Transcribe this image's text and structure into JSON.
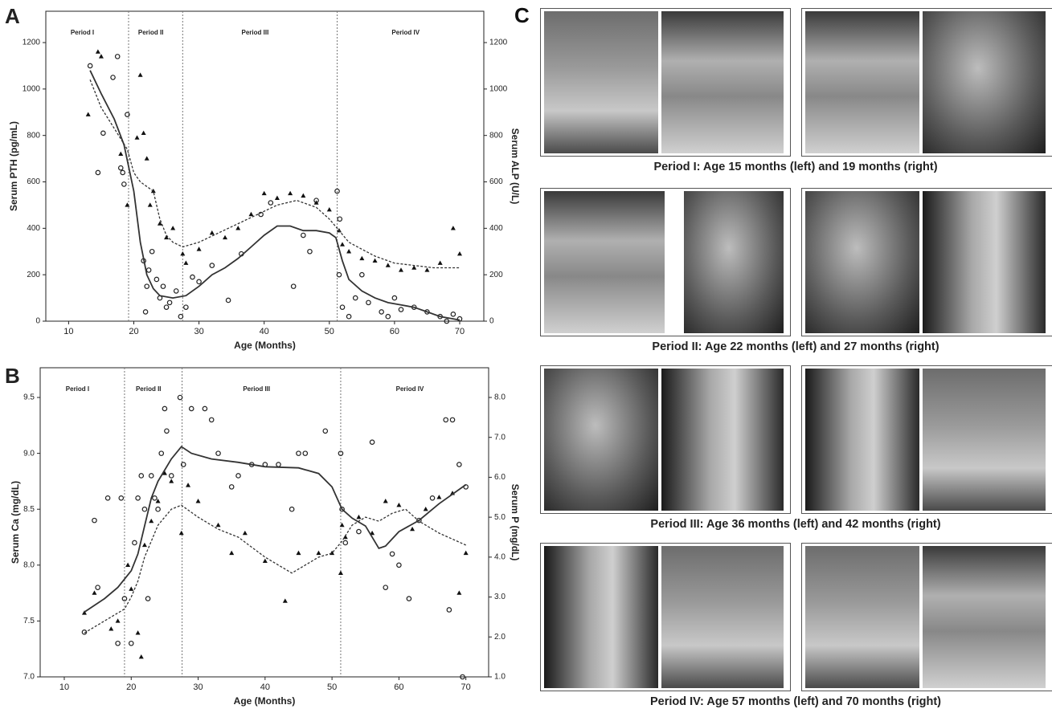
{
  "chart_data": [
    {
      "type": "scatter",
      "panel_label": "A",
      "x_label": "Age (Months)",
      "y_label": "Serum PTH (pg/mL)",
      "y2_label": "Serum ALP (U/L)",
      "annotations": [
        "Period I",
        "Period II",
        "Period III",
        "Period IV"
      ],
      "period_boundaries": [
        19.2,
        27.5,
        51.2
      ],
      "xlim": [
        6.5,
        73.7
      ],
      "xticks": [
        10,
        20,
        30,
        40,
        50,
        60,
        70
      ],
      "ylim": [
        0,
        1335
      ],
      "yticks": [
        0,
        200,
        400,
        600,
        800,
        1000,
        1200
      ],
      "y2lim": [
        0,
        1335
      ],
      "y2ticks": [
        0,
        200,
        400,
        600,
        800,
        1000,
        1200
      ],
      "series": [
        {
          "marker": "circle",
          "color": "#222222",
          "x": [
            13.3,
            14.5,
            15.3,
            16.8,
            17.5,
            18,
            18.3,
            18.5,
            19,
            21.5,
            21.8,
            22,
            22.3,
            22.8,
            23.5,
            24,
            24.5,
            25,
            25.5,
            26.5,
            27.2,
            28,
            29,
            30,
            32,
            34.5,
            36.5,
            39.5,
            41,
            44.5,
            46,
            47,
            48,
            51.2,
            51.5,
            51.6,
            52,
            53,
            54,
            55,
            56,
            58,
            59,
            60,
            61,
            63,
            65,
            67,
            68,
            69,
            70
          ],
          "values": [
            1100,
            640,
            810,
            1050,
            1140,
            660,
            640,
            590,
            890,
            260,
            40,
            150,
            220,
            300,
            180,
            100,
            150,
            60,
            80,
            130,
            20,
            60,
            190,
            170,
            240,
            90,
            290,
            460,
            510,
            150,
            370,
            300,
            520,
            560,
            200,
            440,
            60,
            20,
            100,
            200,
            80,
            40,
            20,
            100,
            50,
            60,
            40,
            20,
            0,
            30,
            10
          ]
        },
        {
          "marker": "triangle",
          "color": "#111111",
          "axis": "y2",
          "x": [
            13,
            14.5,
            15,
            18,
            19,
            20.5,
            21,
            21.5,
            22,
            22.5,
            23,
            24,
            25,
            26,
            27.5,
            28,
            30,
            32,
            34,
            36,
            38,
            40,
            42,
            44,
            46,
            48,
            50,
            51.5,
            52,
            53,
            55,
            57,
            59,
            61,
            63,
            65,
            67,
            69,
            70
          ],
          "values": [
            890,
            1160,
            1140,
            720,
            500,
            790,
            1060,
            810,
            700,
            500,
            560,
            420,
            360,
            400,
            290,
            250,
            310,
            380,
            360,
            400,
            460,
            550,
            530,
            550,
            540,
            510,
            480,
            390,
            330,
            300,
            270,
            260,
            240,
            220,
            230,
            220,
            250,
            400,
            290
          ]
        },
        {
          "marker": "line",
          "style": "solid",
          "color": "#333333",
          "x": [
            13.3,
            15,
            17,
            18.5,
            20,
            21,
            22,
            23,
            24,
            26,
            28,
            30,
            32,
            34,
            36,
            38,
            40,
            42,
            44,
            46,
            48,
            50,
            51,
            52,
            53,
            55,
            57,
            59,
            61,
            63,
            65,
            67,
            69,
            70
          ],
          "values": [
            1080,
            980,
            870,
            760,
            560,
            340,
            200,
            140,
            110,
            100,
            110,
            150,
            200,
            230,
            270,
            320,
            370,
            410,
            410,
            390,
            390,
            380,
            360,
            260,
            180,
            130,
            100,
            80,
            70,
            60,
            40,
            20,
            10,
            5
          ]
        },
        {
          "marker": "line",
          "style": "dashed",
          "color": "#333333",
          "axis": "y2",
          "x": [
            13.3,
            15,
            17,
            19,
            20,
            21,
            22,
            23,
            24,
            25,
            26,
            27.5,
            30,
            33,
            36,
            39,
            42,
            45,
            48,
            50,
            51.5,
            53,
            55,
            57,
            60,
            63,
            66,
            70
          ],
          "values": [
            1040,
            920,
            830,
            740,
            640,
            600,
            580,
            560,
            440,
            370,
            340,
            320,
            340,
            380,
            420,
            460,
            500,
            520,
            490,
            440,
            390,
            340,
            310,
            280,
            250,
            240,
            230,
            230
          ]
        }
      ]
    },
    {
      "type": "scatter",
      "panel_label": "B",
      "x_label": "Age (Months)",
      "y_label": "Serum Ca (mg/dL)",
      "y2_label": "Serum P (mg/dL)",
      "annotations": [
        "Period I",
        "Period II",
        "Period III",
        "Period IV"
      ],
      "period_boundaries": [
        19,
        27.6,
        51.3
      ],
      "xlim": [
        6.4,
        73.4
      ],
      "xticks": [
        10,
        20,
        30,
        40,
        50,
        60,
        70
      ],
      "ylim": [
        7.0,
        9.766
      ],
      "yticks": [
        {
          "value": 7,
          "label": "7.0"
        },
        7.5,
        {
          "value": 8,
          "label": "8.0"
        },
        8.5,
        {
          "value": 9,
          "label": "9.0"
        },
        9.5
      ],
      "y2lim": [
        1.0,
        8.744
      ],
      "y2ticks": [
        {
          "value": 1,
          "label": "1.0"
        },
        {
          "value": 2,
          "label": "2.0"
        },
        {
          "value": 3,
          "label": "3.0"
        },
        {
          "value": 4,
          "label": "4.0"
        },
        {
          "value": 5,
          "label": "5.0"
        },
        {
          "value": 6,
          "label": "6.0"
        },
        {
          "value": 7,
          "label": "7.0"
        },
        {
          "value": 8,
          "label": "8.0"
        }
      ],
      "series": [
        {
          "marker": "circle",
          "color": "#222222",
          "x": [
            13,
            14.5,
            15,
            16.5,
            18,
            18.5,
            19,
            20,
            20.5,
            21,
            21.5,
            22,
            22.5,
            23,
            23.5,
            24,
            24.5,
            25,
            25.3,
            26,
            27.3,
            27.8,
            29,
            31,
            32,
            33,
            35,
            36,
            38,
            40,
            42,
            44,
            45,
            46,
            49,
            51.3,
            51.5,
            52,
            54,
            56,
            58,
            59,
            60,
            61.5,
            63,
            65,
            67,
            67.5,
            68,
            69,
            69.5,
            70
          ],
          "values": [
            7.4,
            8.4,
            7.8,
            8.6,
            7.3,
            8.6,
            7.7,
            7.3,
            8.2,
            8.6,
            8.8,
            8.5,
            7.7,
            8.8,
            8.6,
            8.5,
            9.0,
            9.4,
            9.2,
            8.8,
            9.5,
            8.9,
            9.4,
            9.4,
            9.3,
            9.0,
            8.7,
            8.8,
            8.9,
            8.9,
            8.9,
            8.5,
            9.0,
            9.0,
            9.2,
            9.0,
            8.5,
            8.2,
            8.3,
            9.1,
            7.8,
            8.1,
            8.0,
            7.7,
            8.4,
            8.6,
            9.3,
            7.6,
            9.3,
            8.9,
            7.0,
            8.7
          ]
        },
        {
          "marker": "triangle",
          "color": "#111111",
          "axis": "y2",
          "x": [
            13,
            14.5,
            17,
            18,
            19.5,
            20,
            21,
            21.5,
            22,
            23,
            24,
            25,
            26,
            27.5,
            28.5,
            30,
            33,
            35,
            37,
            40,
            43,
            45,
            48,
            50,
            51.3,
            51.5,
            52,
            54,
            56,
            58,
            60,
            62,
            64,
            66,
            68,
            69,
            70
          ],
          "values": [
            2.6,
            3.1,
            2.2,
            2.4,
            3.8,
            3.2,
            2.1,
            1.5,
            4.3,
            4.9,
            5.4,
            6.1,
            5.9,
            4.6,
            5.8,
            5.4,
            4.8,
            4.1,
            4.6,
            3.9,
            2.9,
            4.1,
            4.1,
            4.1,
            3.6,
            4.8,
            4.5,
            5.0,
            4.6,
            5.4,
            5.3,
            4.7,
            5.2,
            5.5,
            5.6,
            3.1,
            4.1
          ]
        },
        {
          "marker": "line",
          "style": "solid",
          "color": "#333333",
          "x": [
            13,
            16,
            18,
            20,
            21,
            22,
            23,
            24,
            25,
            26,
            27.5,
            29,
            32,
            36,
            40,
            45,
            48,
            50,
            51.5,
            53,
            55,
            57,
            58,
            60,
            63,
            66,
            70
          ],
          "values": [
            7.58,
            7.7,
            7.8,
            7.95,
            8.1,
            8.35,
            8.6,
            8.75,
            8.85,
            8.95,
            9.06,
            9.0,
            8.95,
            8.92,
            8.88,
            8.87,
            8.82,
            8.7,
            8.5,
            8.42,
            8.35,
            8.15,
            8.17,
            8.3,
            8.4,
            8.55,
            8.72
          ]
        },
        {
          "marker": "line",
          "style": "dashed",
          "color": "#333333",
          "axis": "y2",
          "x": [
            13,
            15,
            17,
            19,
            20,
            21,
            22,
            24,
            26,
            27.5,
            30,
            33,
            36,
            40,
            44,
            46,
            48,
            50,
            51.5,
            53,
            55,
            57,
            59,
            61,
            63,
            66,
            70
          ],
          "values": [
            2.1,
            2.3,
            2.5,
            2.7,
            3.0,
            3.4,
            4.0,
            4.8,
            5.2,
            5.3,
            5.0,
            4.7,
            4.5,
            4.0,
            3.6,
            3.8,
            4.0,
            4.1,
            4.4,
            4.8,
            5.0,
            4.9,
            5.1,
            5.2,
            4.9,
            4.6,
            4.3
          ]
        }
      ]
    }
  ],
  "panel_c": {
    "label": "C",
    "captions": [
      "Period I: Age 15 months (left) and 19 months (right)",
      "Period II: Age 22 months (left) and 27 months (right)",
      "Period III: Age 36 months (left) and 42 months (right)",
      "Period IV: Age 57 months (left) and 70 months (right)"
    ]
  }
}
